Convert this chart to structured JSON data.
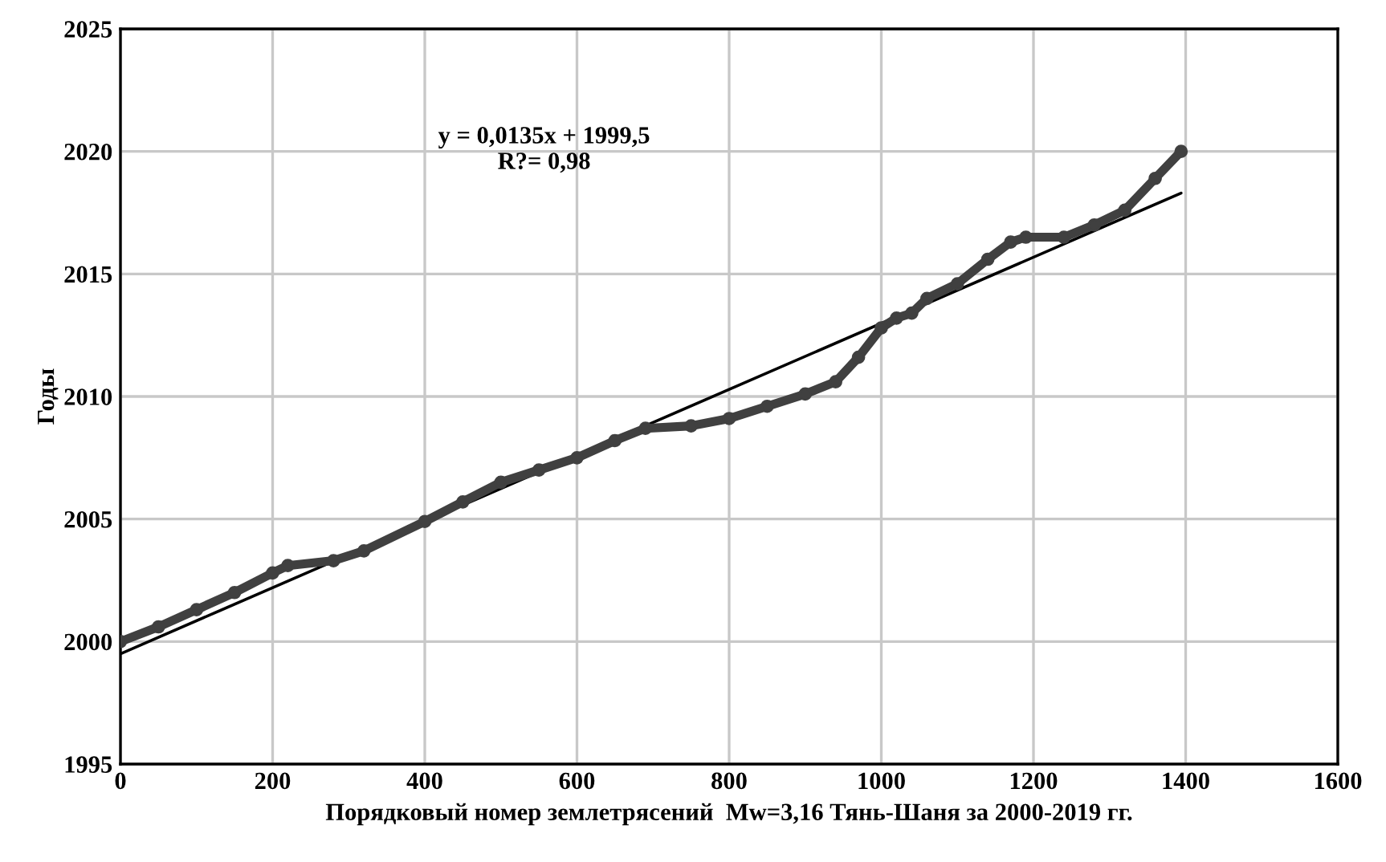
{
  "chart_data": {
    "type": "line",
    "xlabel": "Порядковый номер землетрясений  Mw=3,16 Тянь-Шаня за 2000-2019 гг.",
    "ylabel": "Годы",
    "annotations": [
      "y = 0,0135x + 1999,5\nR?= 0,98"
    ],
    "series": [
      {
        "color": "#404040",
        "marker": "circle",
        "x": [
          0,
          50,
          100,
          150,
          200,
          220,
          280,
          320,
          400,
          450,
          500,
          550,
          600,
          650,
          690,
          750,
          800,
          850,
          900,
          940,
          970,
          1000,
          1020,
          1040,
          1060,
          1100,
          1140,
          1170,
          1190,
          1240,
          1280,
          1320,
          1360,
          1394
        ],
        "values": [
          2000.0,
          2000.6,
          2001.3,
          2002.0,
          2002.8,
          2003.1,
          2003.3,
          2003.7,
          2004.9,
          2005.7,
          2006.5,
          2007.0,
          2007.5,
          2008.2,
          2008.7,
          2008.8,
          2009.1,
          2009.6,
          2010.1,
          2010.6,
          2011.6,
          2012.8,
          2013.2,
          2013.4,
          2014.0,
          2014.6,
          2015.6,
          2016.3,
          2016.5,
          2016.5,
          2017.0,
          2017.6,
          2018.9,
          2020.0
        ]
      },
      {
        "color": "#000000",
        "marker": "none",
        "x": [
          0,
          1394
        ],
        "values": [
          1999.5,
          2018.3
        ]
      }
    ],
    "xlim": [
      0,
      1600
    ],
    "xticks": [
      0,
      200,
      400,
      600,
      800,
      1000,
      1200,
      1400,
      1600
    ],
    "ylim": [
      1995,
      2025
    ],
    "yticks": [
      1995,
      2000,
      2005,
      2010,
      2015,
      2020,
      2025
    ],
    "grid": true,
    "legend": false
  }
}
